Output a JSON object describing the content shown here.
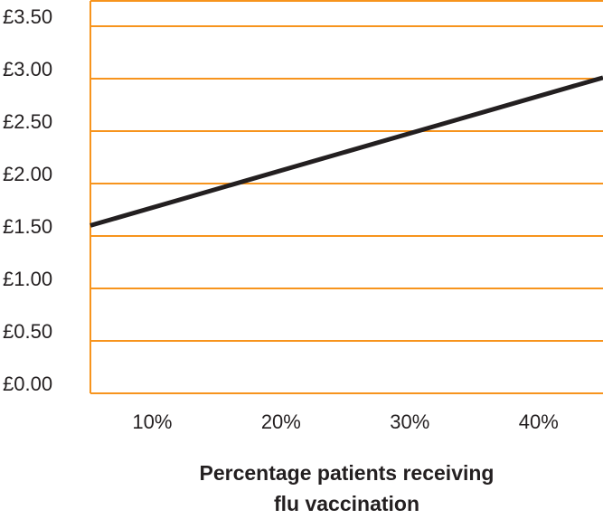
{
  "colors": {
    "grid": "#f7941d",
    "line": "#231f20",
    "text": "#231f20",
    "background": "#ffffff"
  },
  "chart_data": {
    "type": "line",
    "title": "",
    "ylabel": "",
    "xlabel_lines": [
      "Percentage patients receiving",
      "flu vaccination"
    ],
    "x_ticks": [
      {
        "label": "10%",
        "value": 10
      },
      {
        "label": "20%",
        "value": 20
      },
      {
        "label": "30%",
        "value": 30
      },
      {
        "label": "40%",
        "value": 40
      }
    ],
    "y_ticks": [
      {
        "label": "£0.00",
        "value": 0
      },
      {
        "label": "£0.50",
        "value": 0.5
      },
      {
        "label": "£1.00",
        "value": 1.0
      },
      {
        "label": "£1.50",
        "value": 1.5
      },
      {
        "label": "£2.00",
        "value": 2.0
      },
      {
        "label": "£2.50",
        "value": 2.5
      },
      {
        "label": "£3.00",
        "value": 3.0
      },
      {
        "label": "£3.50",
        "value": 3.5
      }
    ],
    "xlim": [
      5.2,
      45
    ],
    "ylim": [
      0,
      3.75
    ],
    "grid": true,
    "series": [
      {
        "x": [
          5.2,
          45
        ],
        "y": [
          1.6,
          3.01
        ]
      }
    ]
  }
}
